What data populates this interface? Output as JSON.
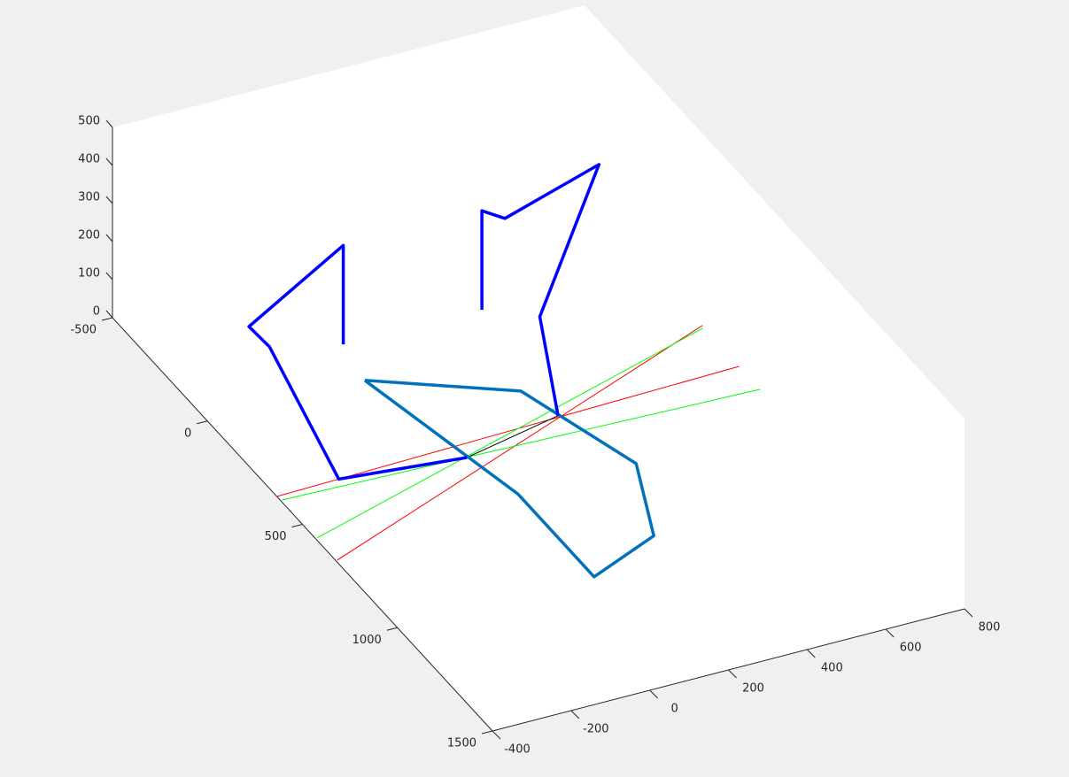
{
  "chart_data": {
    "type": "line3d",
    "xlim": [
      -400,
      800
    ],
    "ylim": [
      -500,
      1500
    ],
    "zlim": [
      0,
      500
    ],
    "xticks": [
      -400,
      -200,
      0,
      200,
      400,
      600,
      800
    ],
    "yticks": [
      -500,
      0,
      500,
      1000,
      1500
    ],
    "zticks": [
      0,
      100,
      200,
      300,
      400,
      500
    ],
    "series": [
      {
        "color": "#ff0000",
        "line_width": 1,
        "x": [
          -399,
          795
        ],
        "y": [
          365,
          324
        ],
        "z": [
          0,
          0
        ]
      },
      {
        "color": "#ff0000",
        "line_width": 1,
        "x": [
          -396,
          797
        ],
        "y": [
          675,
          127
        ],
        "z": [
          0,
          0
        ]
      },
      {
        "color": "#00ff00",
        "line_width": 1,
        "x": [
          -396,
          795
        ],
        "y": [
          384,
          435
        ],
        "z": [
          0,
          0
        ]
      },
      {
        "color": "#00ff00",
        "line_width": 1,
        "x": [
          -396,
          792
        ],
        "y": [
          568,
          138
        ],
        "z": [
          0,
          0
        ]
      },
      {
        "color": "#000000",
        "line_width": 1,
        "x": [
          64,
          330
        ],
        "y": [
          405,
          334
        ],
        "z": [
          0,
          0
        ]
      },
      {
        "color": "#0072bd",
        "line_width": 3.5,
        "x": [
          0,
          300,
          400,
          300,
          100,
          100,
          0
        ],
        "y": [
          0,
          200,
          600,
          900,
          1000,
          600,
          0
        ],
        "z": [
          0,
          0,
          0,
          0,
          0,
          0,
          0
        ]
      },
      {
        "color": "#0000ff",
        "line_width": 3.5,
        "x": [
          64,
          -240,
          -348,
          -352,
          -120,
          -120
        ],
        "y": [
          405,
          360,
          219,
          119,
          135,
          135
        ],
        "z": [
          0,
          0,
          300,
          300,
          460,
          200
        ]
      },
      {
        "color": "#0000ff",
        "line_width": 3.5,
        "x": [
          330,
          300,
          529,
          306,
          230,
          230
        ],
        "y": [
          334,
          300,
          137,
          104,
          140,
          140
        ],
        "z": [
          0,
          250,
          500,
          400,
          460,
          200
        ]
      }
    ]
  }
}
